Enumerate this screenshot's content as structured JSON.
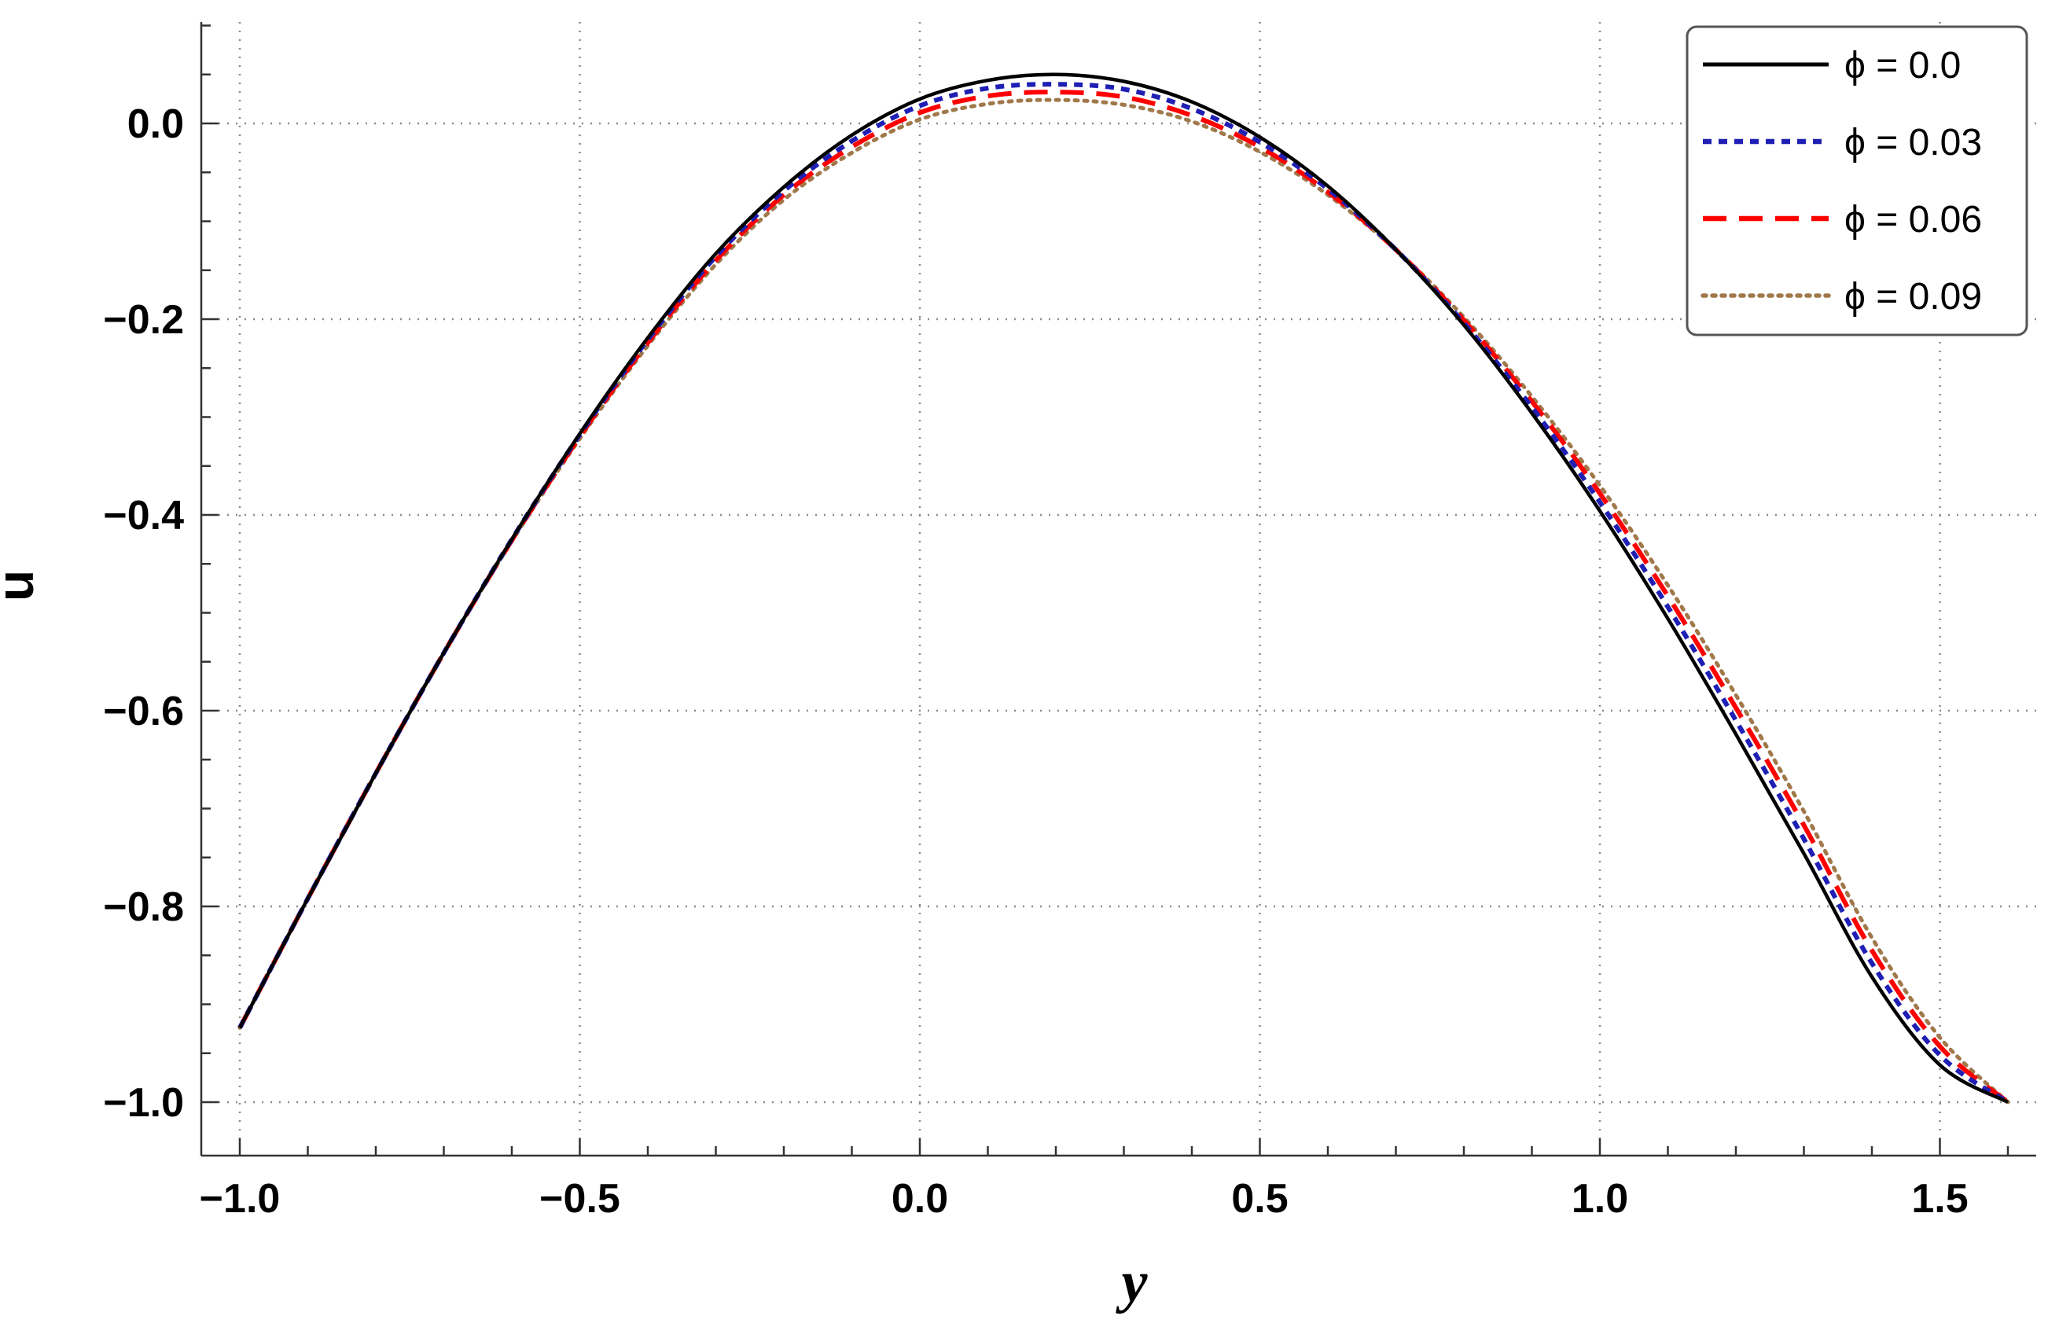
{
  "chart_data": {
    "type": "line",
    "title": "",
    "xlabel": "y",
    "ylabel": "u",
    "xlim": [
      -1.06,
      1.62
    ],
    "ylim": [
      -1.05,
      0.1
    ],
    "xticks": [
      -1.0,
      -0.5,
      0.0,
      0.5,
      1.0,
      1.5
    ],
    "xtick_labels": [
      "−1.0",
      "−0.5",
      "0.0",
      "0.5",
      "1.0",
      "1.5"
    ],
    "yticks": [
      0.0,
      -0.2,
      -0.4,
      -0.6,
      -0.8,
      -1.0
    ],
    "ytick_labels": [
      "0.0",
      "−0.2",
      "−0.4",
      "−0.6",
      "−0.8",
      "−1.0"
    ],
    "grid": true,
    "legend_position": "top-right",
    "x": [
      -1.0,
      -0.9,
      -0.8,
      -0.7,
      -0.6,
      -0.5,
      -0.4,
      -0.3,
      -0.2,
      -0.1,
      0.0,
      0.1,
      0.2,
      0.3,
      0.4,
      0.5,
      0.6,
      0.7,
      0.8,
      0.9,
      1.0,
      1.1,
      1.2,
      1.3,
      1.4,
      1.5,
      1.6
    ],
    "series": [
      {
        "name": "ϕ = 0.0",
        "color": "#000000",
        "dash": "solid",
        "values": [
          -0.924,
          -0.792,
          -0.664,
          -0.541,
          -0.425,
          -0.317,
          -0.219,
          -0.133,
          -0.065,
          -0.012,
          0.025,
          0.044,
          0.05,
          0.043,
          0.022,
          -0.014,
          -0.064,
          -0.129,
          -0.206,
          -0.296,
          -0.396,
          -0.506,
          -0.624,
          -0.746,
          -0.872,
          -0.962,
          -1.0
        ]
      },
      {
        "name": "ϕ = 0.03",
        "color": "#1f1fb4",
        "dash": "dotted-blue",
        "values": [
          -0.924,
          -0.792,
          -0.664,
          -0.541,
          -0.425,
          -0.318,
          -0.221,
          -0.136,
          -0.069,
          -0.018,
          0.018,
          0.036,
          0.04,
          0.035,
          0.015,
          -0.019,
          -0.067,
          -0.129,
          -0.204,
          -0.29,
          -0.387,
          -0.494,
          -0.61,
          -0.731,
          -0.858,
          -0.952,
          -1.0
        ]
      },
      {
        "name": "ϕ = 0.06",
        "color": "#ff0000",
        "dash": "dashed",
        "values": [
          -0.924,
          -0.792,
          -0.664,
          -0.541,
          -0.426,
          -0.32,
          -0.224,
          -0.14,
          -0.073,
          -0.024,
          0.011,
          0.028,
          0.032,
          0.027,
          0.008,
          -0.024,
          -0.07,
          -0.129,
          -0.201,
          -0.284,
          -0.378,
          -0.483,
          -0.597,
          -0.717,
          -0.845,
          -0.943,
          -1.0
        ]
      },
      {
        "name": "ϕ = 0.09",
        "color": "#a0784a",
        "dash": "dotted",
        "values": [
          -0.924,
          -0.792,
          -0.664,
          -0.541,
          -0.427,
          -0.322,
          -0.227,
          -0.144,
          -0.078,
          -0.03,
          0.004,
          0.02,
          0.024,
          0.019,
          0.002,
          -0.029,
          -0.073,
          -0.129,
          -0.198,
          -0.279,
          -0.37,
          -0.472,
          -0.584,
          -0.703,
          -0.832,
          -0.934,
          -1.0
        ]
      }
    ]
  }
}
